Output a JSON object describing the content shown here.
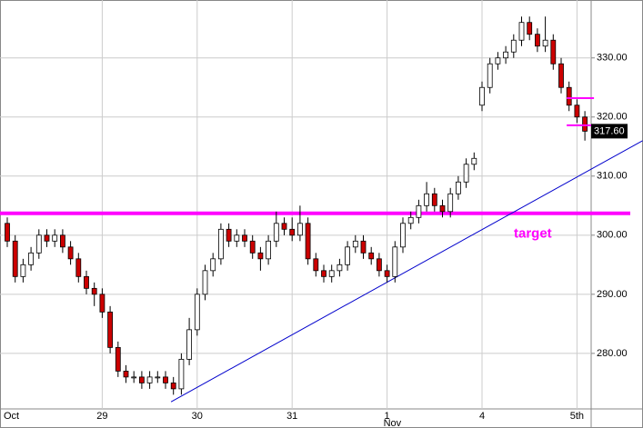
{
  "chart_data": {
    "type": "candlestick",
    "categories": [
      "Oct",
      null,
      null,
      null,
      null,
      null,
      null,
      null,
      null,
      null,
      null,
      null,
      "29",
      null,
      null,
      null,
      null,
      null,
      null,
      null,
      null,
      null,
      null,
      null,
      "30",
      null,
      null,
      null,
      null,
      null,
      null,
      null,
      null,
      null,
      null,
      null,
      "31",
      null,
      null,
      null,
      null,
      null,
      null,
      null,
      null,
      null,
      null,
      null,
      "1",
      null,
      null,
      null,
      null,
      null,
      null,
      null,
      null,
      null,
      null,
      null,
      "4",
      null,
      null,
      null,
      null,
      null,
      null,
      null,
      null,
      null,
      null,
      null,
      "5th",
      null
    ],
    "months": [
      null,
      null,
      null,
      null,
      null,
      null,
      null,
      null,
      null,
      null,
      null,
      null,
      null,
      null,
      null,
      null,
      null,
      null,
      null,
      null,
      null,
      null,
      null,
      null,
      null,
      null,
      null,
      null,
      null,
      null,
      null,
      null,
      null,
      null,
      null,
      null,
      null,
      null,
      null,
      null,
      null,
      null,
      null,
      null,
      null,
      null,
      null,
      null,
      "Nov",
      null,
      null,
      null,
      null,
      null,
      null,
      null,
      null,
      null,
      null,
      null,
      null,
      null,
      null,
      null,
      null,
      null,
      null,
      null,
      null,
      null,
      null,
      null,
      null,
      null
    ],
    "open": [
      302,
      299,
      293,
      295,
      297,
      300,
      299,
      300,
      298,
      296,
      293,
      291,
      290,
      287,
      281,
      277,
      276,
      276,
      275,
      276,
      276,
      275,
      274,
      279,
      284,
      290,
      294,
      296,
      301,
      299,
      300,
      299,
      297,
      296,
      299,
      302,
      301,
      300,
      302,
      296,
      294,
      293,
      294,
      295,
      298,
      299,
      297,
      296,
      294,
      293,
      298,
      302,
      303,
      305,
      307,
      305,
      304,
      307,
      309,
      312,
      322,
      325,
      329,
      330,
      331,
      333,
      336,
      334,
      332,
      333,
      329,
      325,
      322,
      320
    ],
    "high": [
      303,
      300,
      296,
      298,
      301,
      301,
      301,
      301,
      299,
      297,
      294,
      292,
      291,
      288,
      282,
      278,
      277,
      277,
      277,
      277,
      277,
      276,
      280,
      286,
      291,
      295,
      297,
      302,
      302,
      301,
      301,
      300,
      298,
      300,
      304,
      303,
      303,
      305,
      303,
      297,
      295,
      295,
      296,
      299,
      300,
      300,
      298,
      297,
      295,
      299,
      303,
      304,
      306,
      309,
      308,
      306,
      308,
      310,
      313,
      314,
      326,
      330,
      331,
      332,
      334,
      337,
      337,
      335,
      337,
      334,
      330,
      326,
      323,
      321
    ],
    "low": [
      298,
      292,
      292,
      294,
      296,
      298,
      298,
      297,
      295,
      292,
      290,
      288,
      286,
      280,
      276,
      275,
      275,
      274,
      274,
      275,
      274,
      273,
      273,
      278,
      283,
      289,
      293,
      295,
      298,
      298,
      298,
      296,
      294,
      295,
      298,
      300,
      299,
      299,
      295,
      293,
      292,
      292,
      293,
      294,
      297,
      296,
      295,
      293,
      292,
      292,
      297,
      301,
      302,
      304,
      304,
      303,
      303,
      306,
      308,
      311,
      321,
      324,
      328,
      329,
      330,
      332,
      333,
      331,
      331,
      328,
      324,
      321,
      319,
      316
    ],
    "close": [
      299,
      293,
      295,
      297,
      300,
      299,
      300,
      298,
      296,
      293,
      291,
      290,
      287,
      281,
      277,
      276,
      276,
      275,
      276,
      276,
      275,
      274,
      279,
      284,
      290,
      294,
      296,
      301,
      299,
      300,
      299,
      297,
      296,
      299,
      302,
      301,
      300,
      302,
      296,
      294,
      293,
      294,
      295,
      298,
      299,
      297,
      296,
      294,
      293,
      298,
      302,
      303,
      305,
      307,
      305,
      304,
      307,
      309,
      312,
      313,
      325,
      329,
      330,
      331,
      333,
      336,
      334,
      332,
      333,
      329,
      325,
      322,
      320,
      317.6
    ],
    "up_color": "#ffffff",
    "down_color": "#cc0000",
    "ylim": [
      270.6,
      339.8
    ],
    "yticks": [
      {
        "value": 280,
        "label": "280.00"
      },
      {
        "value": 290,
        "label": "290.00"
      },
      {
        "value": 300,
        "label": "300.00"
      },
      {
        "value": 310,
        "label": "310.00"
      },
      {
        "value": 320,
        "label": "320.00"
      },
      {
        "value": 330,
        "label": "330.00"
      }
    ],
    "grid": true,
    "last_price": {
      "value": 317.6,
      "label": "317.60"
    },
    "target_level": 303.7,
    "target_color": "#ff00ff",
    "target_label": "target",
    "short_levels": [
      323.2,
      318.6
    ],
    "trendline": {
      "from": [
        20.7,
        271.8
      ],
      "to": [
        80.3,
        316
      ],
      "color": "#0000cc"
    }
  }
}
